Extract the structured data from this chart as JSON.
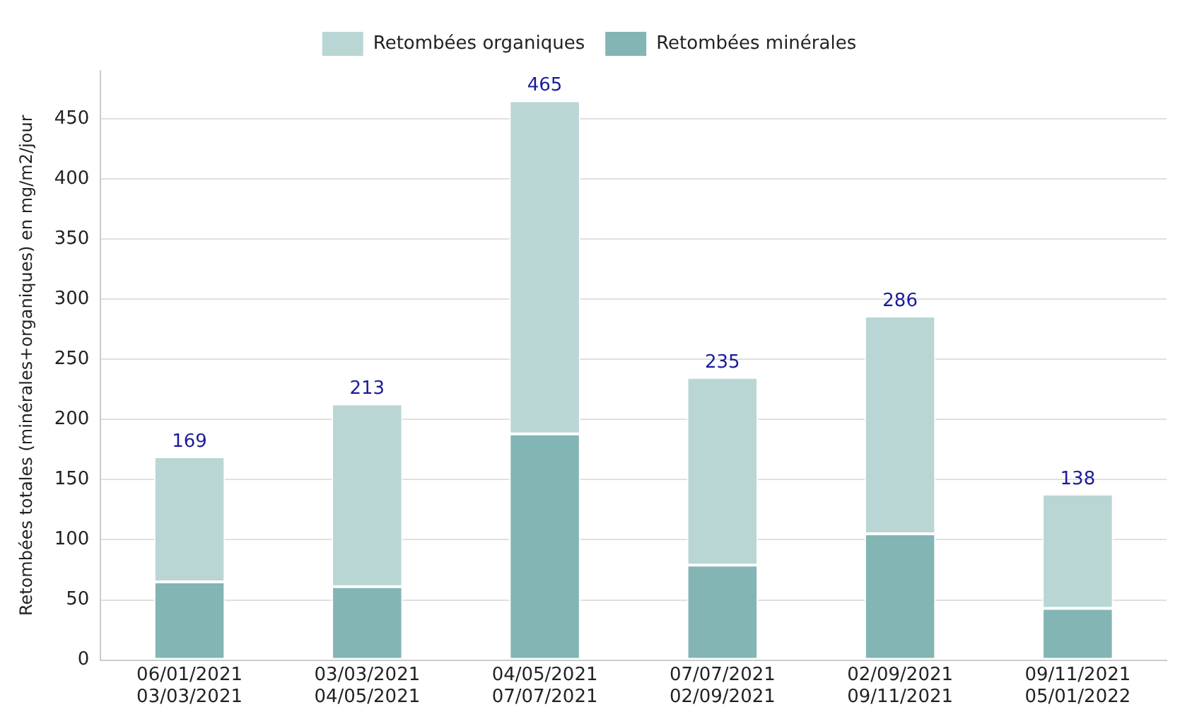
{
  "chart_data": {
    "type": "bar",
    "stacked": true,
    "ylabel": "Retombées totales (minérales+organiques) en mg/m2/jour",
    "categories": [
      "06/01/2021\n03/03/2021",
      "03/03/2021\n04/05/2021",
      "04/05/2021\n07/07/2021",
      "07/07/2021\n02/09/2021",
      "02/09/2021\n09/11/2021",
      "09/11/2021\n05/01/2022"
    ],
    "series": [
      {
        "name": "Retombées minérales",
        "color": "#82b5b4",
        "values": [
          65,
          61,
          188,
          79,
          105,
          43
        ]
      },
      {
        "name": "Retombées organiques",
        "color": "#b9d6d5",
        "values": [
          104,
          152,
          277,
          156,
          181,
          95
        ]
      }
    ],
    "totals": [
      "169",
      "213",
      "465",
      "235",
      "286",
      "138"
    ],
    "ylim": [
      0,
      490
    ],
    "yticks": [
      0,
      50,
      100,
      150,
      200,
      250,
      300,
      350,
      400,
      450
    ],
    "grid": "y",
    "legend": "top"
  }
}
